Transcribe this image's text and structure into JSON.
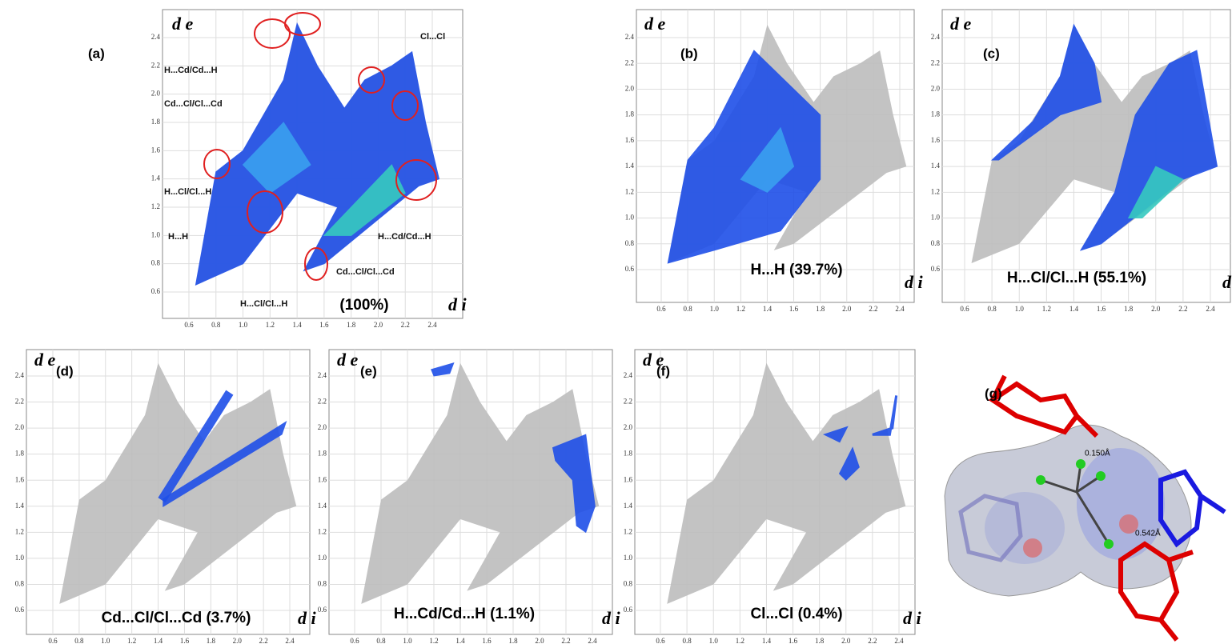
{
  "axis_labels": {
    "y": "d e",
    "x": "d i"
  },
  "ticks": [
    "0.6",
    "0.8",
    "1.0",
    "1.2",
    "1.4",
    "1.6",
    "1.8",
    "2.0",
    "2.2",
    "2.4"
  ],
  "panels": [
    {
      "label": "(a)",
      "caption": "(100%)",
      "annotations": [
        "H...Cd/Cd...H",
        "Cd...Cl/Cl...Cd",
        "H...Cl/Cl...H",
        "H...H",
        "H...Cd/Cd...H",
        "Cd...Cl/Cl...Cd",
        "H...Cl/Cl...H",
        "Cl...Cl"
      ]
    },
    {
      "label": "(b)",
      "caption": "H...H (39.7%)"
    },
    {
      "label": "(c)",
      "caption": "H...Cl/Cl...H (55.1%)"
    },
    {
      "label": "(d)",
      "caption": "Cd...Cl/Cl...Cd (3.7%)"
    },
    {
      "label": "(e)",
      "caption": "H...Cd/Cd...H (1.1%)"
    },
    {
      "label": "(f)",
      "caption": "Cl...Cl (0.4%)"
    }
  ],
  "molecule": {
    "label": "(g)",
    "distances": [
      "0.150Å",
      "0.542Å"
    ]
  }
}
